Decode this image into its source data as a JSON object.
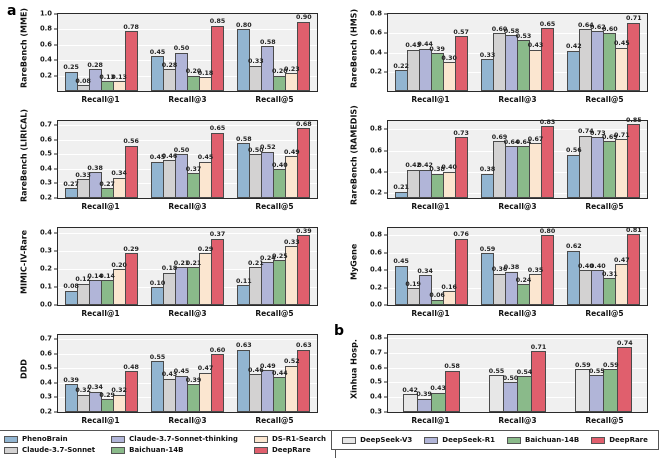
{
  "panels": {
    "a": "a",
    "b": "b"
  },
  "palette_a": {
    "PhenoBrain": "#92b5d1",
    "Claude-3.7-Sonnet": "#d3d2d2",
    "Claude-3.7-Sonnet-thinking": "#b1b5d8",
    "Baichuan-14B": "#8aba8a",
    "DS-R1-Search": "#fbe6d0",
    "DeepRare": "#e05f6d"
  },
  "palette_b": {
    "DeepSeek-V3": "#e7e7e7",
    "DeepSeek-R1": "#b1b5d8",
    "Baichuan-14B": "#8aba8a",
    "DeepRare": "#e05f6d"
  },
  "legend_a": {
    "items": [
      "PhenoBrain",
      "Claude-3.7-Sonnet",
      "Claude-3.7-Sonnet-thinking",
      "Baichuan-14B",
      "DS-R1-Search",
      "DeepRare"
    ]
  },
  "legend_b": {
    "items": [
      "DeepSeek-V3",
      "DeepSeek-R1",
      "Baichuan-14B",
      "DeepRare"
    ]
  },
  "chart_data": [
    {
      "id": "rarebench-mme",
      "panel": "a",
      "type": "bar",
      "ylabel": "RareBench (MME)",
      "categories": [
        "Recall@1",
        "Recall@3",
        "Recall@5"
      ],
      "ylim": [
        0.0,
        1.0
      ],
      "yticks": [
        {
          "v": 0.2,
          "label": "0.2"
        },
        {
          "v": 0.4,
          "label": "0.4"
        },
        {
          "v": 0.6,
          "label": "0.6"
        },
        {
          "v": 0.8,
          "label": "0.8"
        },
        {
          "v": 1.0,
          "label": "1.0"
        }
      ],
      "series": [
        {
          "name": "PhenoBrain",
          "values": [
            0.25,
            0.45,
            0.8
          ]
        },
        {
          "name": "Claude-3.7-Sonnet",
          "values": [
            0.08,
            0.28,
            0.33
          ]
        },
        {
          "name": "Claude-3.7-Sonnet-thinking",
          "values": [
            0.28,
            0.5,
            0.58
          ]
        },
        {
          "name": "Baichuan-14B",
          "values": [
            0.13,
            0.2,
            0.2
          ]
        },
        {
          "name": "DS-R1-Search",
          "values": [
            0.13,
            0.18,
            0.23
          ]
        },
        {
          "name": "DeepRare",
          "values": [
            0.78,
            0.85,
            0.9
          ]
        }
      ]
    },
    {
      "id": "rarebench-hms",
      "panel": "a",
      "type": "bar",
      "ylabel": "RareBench (HMS)",
      "categories": [
        "Recall@1",
        "Recall@3",
        "Recall@5"
      ],
      "ylim": [
        0.0,
        0.8
      ],
      "yticks": [
        {
          "v": 0.2,
          "label": "0.2"
        },
        {
          "v": 0.4,
          "label": "0.4"
        },
        {
          "v": 0.6,
          "label": "0.6"
        },
        {
          "v": 0.8,
          "label": "0.8"
        }
      ],
      "series": [
        {
          "name": "PhenoBrain",
          "values": [
            0.22,
            0.33,
            0.42
          ]
        },
        {
          "name": "Claude-3.7-Sonnet",
          "values": [
            0.43,
            0.6,
            0.64
          ]
        },
        {
          "name": "Claude-3.7-Sonnet-thinking",
          "values": [
            0.44,
            0.58,
            0.62
          ]
        },
        {
          "name": "Baichuan-14B",
          "values": [
            0.39,
            0.53,
            0.6
          ]
        },
        {
          "name": "DS-R1-Search",
          "values": [
            0.3,
            0.43,
            0.45
          ]
        },
        {
          "name": "DeepRare",
          "values": [
            0.57,
            0.65,
            0.71
          ]
        }
      ]
    },
    {
      "id": "rarebench-lirical",
      "panel": "a",
      "type": "bar",
      "ylabel": "RareBench (LIRICAL)",
      "categories": [
        "Recall@1",
        "Recall@3",
        "Recall@5"
      ],
      "ylim": [
        0.2,
        0.73
      ],
      "yticks": [
        {
          "v": 0.2,
          "label": "0.2"
        },
        {
          "v": 0.3,
          "label": "0.3"
        },
        {
          "v": 0.4,
          "label": "0.4"
        },
        {
          "v": 0.5,
          "label": "0.5"
        },
        {
          "v": 0.6,
          "label": "0.6"
        },
        {
          "v": 0.7,
          "label": "0.7"
        }
      ],
      "series": [
        {
          "name": "PhenoBrain",
          "values": [
            0.27,
            0.45,
            0.58
          ]
        },
        {
          "name": "Claude-3.7-Sonnet",
          "values": [
            0.33,
            0.46,
            0.5
          ]
        },
        {
          "name": "Claude-3.7-Sonnet-thinking",
          "values": [
            0.38,
            0.5,
            0.52
          ]
        },
        {
          "name": "Baichuan-14B",
          "values": [
            0.27,
            0.37,
            0.4
          ]
        },
        {
          "name": "DS-R1-Search",
          "values": [
            0.34,
            0.45,
            0.49
          ]
        },
        {
          "name": "DeepRare",
          "values": [
            0.56,
            0.65,
            0.68
          ]
        }
      ]
    },
    {
      "id": "rarebench-ramedis",
      "panel": "a",
      "type": "bar",
      "ylabel": "RareBench (RAMEDIS)",
      "categories": [
        "Recall@1",
        "Recall@3",
        "Recall@5"
      ],
      "ylim": [
        0.15,
        0.88
      ],
      "yticks": [
        {
          "v": 0.2,
          "label": "0.2"
        },
        {
          "v": 0.4,
          "label": "0.4"
        },
        {
          "v": 0.6,
          "label": "0.6"
        },
        {
          "v": 0.8,
          "label": "0.8"
        }
      ],
      "series": [
        {
          "name": "PhenoBrain",
          "values": [
            0.21,
            0.38,
            0.56
          ]
        },
        {
          "name": "Claude-3.7-Sonnet",
          "values": [
            0.42,
            0.69,
            0.74
          ]
        },
        {
          "name": "Claude-3.7-Sonnet-thinking",
          "values": [
            0.42,
            0.64,
            0.73
          ]
        },
        {
          "name": "Baichuan-14B",
          "values": [
            0.38,
            0.64,
            0.69
          ]
        },
        {
          "name": "DS-R1-Search",
          "values": [
            0.4,
            0.67,
            0.71
          ]
        },
        {
          "name": "DeepRare",
          "values": [
            0.73,
            0.83,
            0.85
          ]
        }
      ]
    },
    {
      "id": "mimic-iv-rare",
      "panel": "a",
      "type": "bar",
      "ylabel": "MIMIC-IV-Rare",
      "categories": [
        "Recall@1",
        "Recall@3",
        "Recall@5"
      ],
      "ylim": [
        0.0,
        0.43
      ],
      "yticks": [
        {
          "v": 0.0,
          "label": "0.0"
        },
        {
          "v": 0.1,
          "label": "0.1"
        },
        {
          "v": 0.2,
          "label": "0.2"
        },
        {
          "v": 0.3,
          "label": "0.3"
        },
        {
          "v": 0.4,
          "label": "0.4"
        }
      ],
      "series": [
        {
          "name": "PhenoBrain",
          "values": [
            0.08,
            0.1,
            0.11
          ]
        },
        {
          "name": "Claude-3.7-Sonnet",
          "values": [
            0.12,
            0.18,
            0.21
          ]
        },
        {
          "name": "Claude-3.7-Sonnet-thinking",
          "values": [
            0.14,
            0.21,
            0.24
          ]
        },
        {
          "name": "Baichuan-14B",
          "values": [
            0.14,
            0.21,
            0.25
          ]
        },
        {
          "name": "DS-R1-Search",
          "values": [
            0.2,
            0.29,
            0.33
          ]
        },
        {
          "name": "DeepRare",
          "values": [
            0.29,
            0.37,
            0.39
          ]
        }
      ]
    },
    {
      "id": "mygene",
      "panel": "a",
      "type": "bar",
      "ylabel": "MyGene",
      "categories": [
        "Recall@1",
        "Recall@3",
        "Recall@5"
      ],
      "ylim": [
        0.0,
        0.88
      ],
      "yticks": [
        {
          "v": 0.0,
          "label": "0.0"
        },
        {
          "v": 0.2,
          "label": "0.2"
        },
        {
          "v": 0.4,
          "label": "0.4"
        },
        {
          "v": 0.6,
          "label": "0.6"
        },
        {
          "v": 0.8,
          "label": "0.8"
        }
      ],
      "series": [
        {
          "name": "PhenoBrain",
          "values": [
            0.45,
            0.59,
            0.62
          ]
        },
        {
          "name": "Claude-3.7-Sonnet",
          "values": [
            0.19,
            0.36,
            0.4
          ]
        },
        {
          "name": "Claude-3.7-Sonnet-thinking",
          "values": [
            0.34,
            0.38,
            0.4
          ]
        },
        {
          "name": "Baichuan-14B",
          "values": [
            0.06,
            0.24,
            0.31
          ]
        },
        {
          "name": "DS-R1-Search",
          "values": [
            0.16,
            0.35,
            0.47
          ]
        },
        {
          "name": "DeepRare",
          "values": [
            0.76,
            0.8,
            0.81
          ]
        }
      ]
    },
    {
      "id": "ddd",
      "panel": "a",
      "type": "bar",
      "ylabel": "DDD",
      "categories": [
        "Recall@1",
        "Recall@3",
        "Recall@5"
      ],
      "ylim": [
        0.2,
        0.73
      ],
      "yticks": [
        {
          "v": 0.2,
          "label": "0.2"
        },
        {
          "v": 0.3,
          "label": "0.3"
        },
        {
          "v": 0.4,
          "label": "0.4"
        },
        {
          "v": 0.5,
          "label": "0.5"
        },
        {
          "v": 0.6,
          "label": "0.6"
        },
        {
          "v": 0.7,
          "label": "0.7"
        }
      ],
      "series": [
        {
          "name": "PhenoBrain",
          "values": [
            0.39,
            0.55,
            0.63
          ]
        },
        {
          "name": "Claude-3.7-Sonnet",
          "values": [
            0.32,
            0.43,
            0.46
          ]
        },
        {
          "name": "Claude-3.7-Sonnet-thinking",
          "values": [
            0.34,
            0.45,
            0.49
          ]
        },
        {
          "name": "Baichuan-14B",
          "values": [
            0.29,
            0.39,
            0.44
          ]
        },
        {
          "name": "DS-R1-Search",
          "values": [
            0.32,
            0.47,
            0.52
          ]
        },
        {
          "name": "DeepRare",
          "values": [
            0.48,
            0.6,
            0.63
          ]
        }
      ]
    },
    {
      "id": "xinhua-hosp",
      "panel": "b",
      "type": "bar",
      "ylabel": "Xinhua Hosp.",
      "categories": [
        "Recall@1",
        "Recall@3",
        "Recall@5"
      ],
      "ylim": [
        0.3,
        0.82
      ],
      "yticks": [
        {
          "v": 0.3,
          "label": "0.3"
        },
        {
          "v": 0.4,
          "label": "0.4"
        },
        {
          "v": 0.5,
          "label": "0.5"
        },
        {
          "v": 0.6,
          "label": "0.6"
        },
        {
          "v": 0.7,
          "label": "0.7"
        },
        {
          "v": 0.8,
          "label": "0.8"
        }
      ],
      "series": [
        {
          "name": "DeepSeek-V3",
          "values": [
            0.42,
            0.55,
            0.59
          ]
        },
        {
          "name": "DeepSeek-R1",
          "values": [
            0.39,
            0.5,
            0.55
          ]
        },
        {
          "name": "Baichuan-14B",
          "values": [
            0.43,
            0.54,
            0.59
          ]
        },
        {
          "name": "DeepRare",
          "values": [
            0.58,
            0.71,
            0.74
          ]
        }
      ]
    }
  ]
}
